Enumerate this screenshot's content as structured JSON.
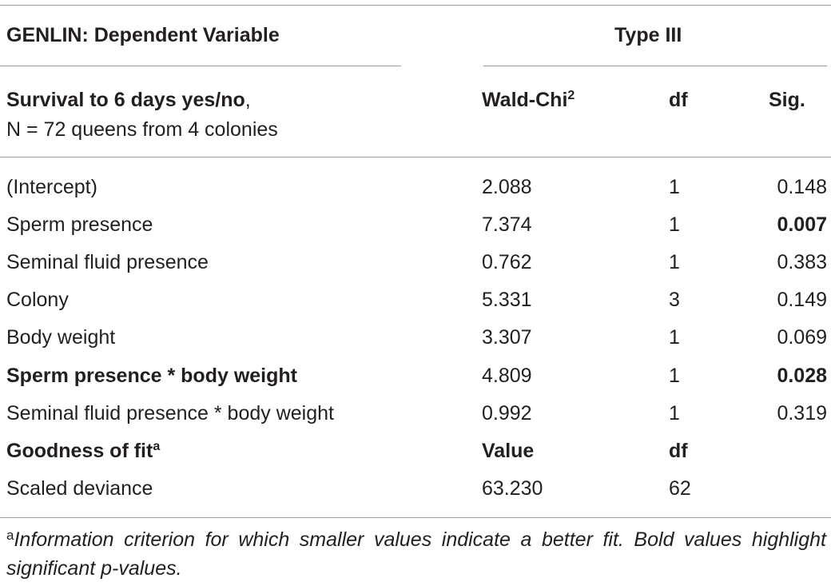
{
  "table": {
    "header": {
      "group_left": "GENLIN: Dependent Variable",
      "group_right": "Type III",
      "dv_label": "Survival to 6 days yes/no",
      "dv_comma": ",",
      "dv_note": "N = 72 queens from 4 colonies",
      "col_wald": "Wald-Chi",
      "col_wald_sup": "2",
      "col_df": "df",
      "col_sig": "Sig."
    },
    "rows": [
      {
        "label": "(Intercept)",
        "wald": "2.088",
        "df": "1",
        "sig": "0.148"
      },
      {
        "label": "Sperm presence",
        "wald": "7.374",
        "df": "1",
        "sig": "0.007"
      },
      {
        "label": "Seminal fluid presence",
        "wald": "0.762",
        "df": "1",
        "sig": "0.383"
      },
      {
        "label": "Colony",
        "wald": "5.331",
        "df": "3",
        "sig": "0.149"
      },
      {
        "label": "Body weight",
        "wald": "3.307",
        "df": "1",
        "sig": "0.069"
      },
      {
        "label": "Sperm presence * body weight",
        "wald": "4.809",
        "df": "1",
        "sig": "0.028"
      },
      {
        "label": "Seminal fluid presence * body weight",
        "wald": "0.992",
        "df": "1",
        "sig": "0.319"
      }
    ],
    "fit_header": {
      "label": "Goodness of fit",
      "label_sup": "a",
      "col_value": "Value",
      "col_df": "df"
    },
    "fit_row": {
      "label": "Scaled deviance",
      "value": "63.230",
      "df": "62"
    }
  },
  "footnote": {
    "marker": "a",
    "text": "Information criterion for which smaller values indicate a better fit. Bold values highlight significant p-values."
  }
}
